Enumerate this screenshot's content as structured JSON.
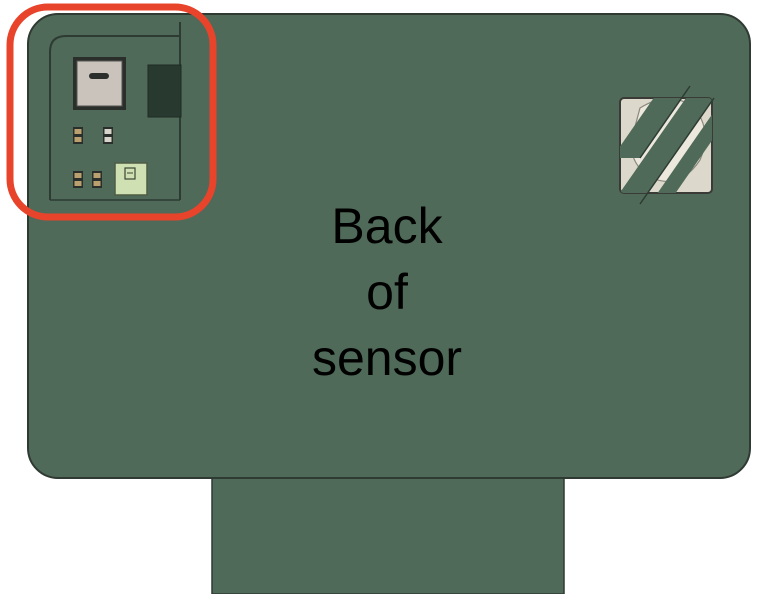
{
  "label_lines": [
    "Back",
    "of",
    "sensor"
  ],
  "colors": {
    "board": "#4f6a58",
    "board_border": "#2f3a33",
    "connector": "#4f6a58",
    "highlight": "#e8442c",
    "module_metal": "#c9c3bb",
    "chip_dark": "#283a30",
    "chip_light": "#cfe0b2",
    "smd_tan": "#b9a06e",
    "window_fill": "#ddd8cc",
    "text": "#000000"
  },
  "icons": {
    "sensor_module": "square-sensor-chip-icon",
    "vent": "striped-vent-icon"
  }
}
